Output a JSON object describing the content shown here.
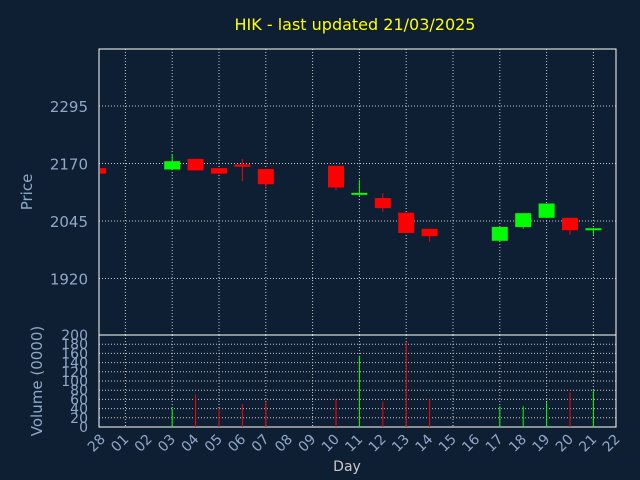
{
  "colors": {
    "background": "#0f1f33",
    "frame": "#ffffff",
    "grid": "#c8c8c8",
    "title": "#ffff00",
    "axis_text": "#8fa8c8",
    "up": "#00ff00",
    "down": "#ff0000"
  },
  "chart_data": {
    "type": "candlestick",
    "title": "HIK - last updated 21/03/2025",
    "xlabel": "Day",
    "grid": true,
    "price_panel": {
      "ylabel": "Price",
      "ylim": [
        1920,
        2295
      ],
      "yticks": [
        "1920",
        "2045",
        "2170",
        "2295"
      ]
    },
    "volume_panel": {
      "ylabel": "Volume (0000)",
      "ylim": [
        0,
        200
      ],
      "yticks": [
        "0",
        "20",
        "40",
        "60",
        "80",
        "100",
        "120",
        "140",
        "160",
        "180",
        "200"
      ]
    },
    "x_labels": [
      "28",
      "01",
      "02",
      "03",
      "04",
      "05",
      "06",
      "07",
      "08",
      "09",
      "10",
      "11",
      "12",
      "13",
      "14",
      "15",
      "16",
      "17",
      "18",
      "19",
      "20",
      "21",
      "22"
    ],
    "candles": [
      {
        "day": "28",
        "open": 2160,
        "close": 2148,
        "high": 2160,
        "low": 2148,
        "volume": 0
      },
      {
        "day": "03",
        "open": 2157,
        "close": 2175,
        "high": 2190,
        "low": 2157,
        "volume": 40
      },
      {
        "day": "04",
        "open": 2180,
        "close": 2155,
        "high": 2180,
        "low": 2155,
        "volume": 70
      },
      {
        "day": "05",
        "open": 2160,
        "close": 2148,
        "high": 2160,
        "low": 2148,
        "volume": 40
      },
      {
        "day": "06",
        "open": 2168,
        "close": 2163,
        "high": 2180,
        "low": 2132,
        "volume": 50
      },
      {
        "day": "07",
        "open": 2158,
        "close": 2125,
        "high": 2158,
        "low": 2115,
        "volume": 55
      },
      {
        "day": "10",
        "open": 2165,
        "close": 2118,
        "high": 2165,
        "low": 2112,
        "volume": 60
      },
      {
        "day": "11",
        "open": 2100,
        "close": 2104,
        "high": 2135,
        "low": 2100,
        "volume": 155
      },
      {
        "day": "12",
        "open": 2095,
        "close": 2073,
        "high": 2105,
        "low": 2065,
        "volume": 55
      },
      {
        "day": "13",
        "open": 2063,
        "close": 2019,
        "high": 2063,
        "low": 2019,
        "volume": 185
      },
      {
        "day": "14",
        "open": 2028,
        "close": 2012,
        "high": 2028,
        "low": 2000,
        "volume": 60
      },
      {
        "day": "17",
        "open": 2002,
        "close": 2032,
        "high": 2032,
        "low": 2002,
        "volume": 45
      },
      {
        "day": "18",
        "open": 2032,
        "close": 2062,
        "high": 2062,
        "low": 2028,
        "volume": 45
      },
      {
        "day": "19",
        "open": 2052,
        "close": 2083,
        "high": 2083,
        "low": 2052,
        "volume": 55
      },
      {
        "day": "20",
        "open": 2052,
        "close": 2025,
        "high": 2052,
        "low": 2015,
        "volume": 75
      },
      {
        "day": "21",
        "open": 2023,
        "close": 2027,
        "high": 2030,
        "low": 2015,
        "volume": 80
      }
    ]
  }
}
